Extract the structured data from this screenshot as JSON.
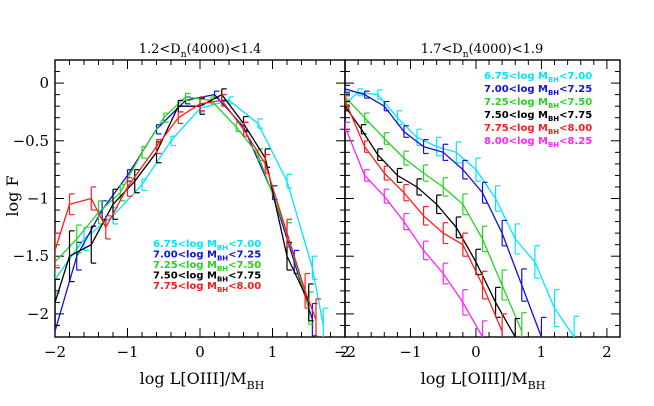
{
  "colors": {
    "cyan": "#00e5ff",
    "blue": "#1010e0",
    "green": "#22d322",
    "black": "#000000",
    "red": "#ff1a1a",
    "magenta": "#ff22ff"
  },
  "axes": {
    "y_label": "log F",
    "x_label": "log L[OIII]/M",
    "x_label_sub": "BH"
  },
  "chart_data": [
    {
      "type": "line",
      "title": "1.2<D",
      "title_sub": "n",
      "title_rest": "(4000)<1.4",
      "xlim": [
        -2,
        2
      ],
      "ylim": [
        -2.2,
        0.2
      ],
      "xticks": [
        -2,
        -1,
        0,
        1,
        2
      ],
      "xtick_labels": [
        "−2",
        "−1",
        "0",
        "1",
        "2"
      ],
      "yticks": [
        0,
        -0.5,
        -1,
        -1.5,
        -2
      ],
      "ytick_labels": [
        "0",
        "−0.5",
        "−1",
        "−1.5",
        "−2"
      ],
      "legend_position": "bottom-center",
      "series": [
        {
          "name": "6.75<log M",
          "name_sub": "BH",
          "name_rest": "<7.00",
          "color": "cyan",
          "x": [
            -2.0,
            -1.6,
            -1.2,
            -0.8,
            -0.4,
            0.0,
            0.4,
            0.8,
            1.2,
            1.55,
            1.7
          ],
          "y": [
            -1.7,
            -1.35,
            -1.15,
            -0.88,
            -0.5,
            -0.22,
            -0.15,
            -0.35,
            -0.85,
            -1.6,
            -2.1
          ],
          "err": [
            0.12,
            0.1,
            0.07,
            0.05,
            0.04,
            0.03,
            0.03,
            0.04,
            0.06,
            0.1,
            0.15
          ]
        },
        {
          "name": "7.00<log M",
          "name_sub": "BH",
          "name_rest": "<7.25",
          "color": "blue",
          "x": [
            -2.0,
            -1.7,
            -1.35,
            -1.0,
            -0.6,
            -0.2,
            0.2,
            0.6,
            1.0,
            1.3,
            1.55
          ],
          "y": [
            -2.15,
            -1.5,
            -1.1,
            -0.8,
            -0.4,
            -0.15,
            -0.1,
            -0.38,
            -0.95,
            -1.55,
            -2.05
          ],
          "err": [
            0.15,
            0.12,
            0.08,
            0.05,
            0.04,
            0.03,
            0.03,
            0.04,
            0.06,
            0.1,
            0.14
          ]
        },
        {
          "name": "7.25<log M",
          "name_sub": "BH",
          "name_rest": "<7.50",
          "color": "green",
          "x": [
            -2.0,
            -1.7,
            -1.4,
            -1.1,
            -0.8,
            -0.5,
            -0.2,
            0.15,
            0.5,
            0.8,
            1.2,
            1.5
          ],
          "y": [
            -1.55,
            -1.35,
            -1.12,
            -0.95,
            -0.6,
            -0.3,
            -0.12,
            -0.15,
            -0.38,
            -0.62,
            -1.3,
            -1.95
          ],
          "err": [
            0.15,
            0.12,
            0.1,
            0.07,
            0.05,
            0.04,
            0.03,
            0.03,
            0.04,
            0.05,
            0.09,
            0.14
          ]
        },
        {
          "name": "7.50<log M",
          "name_sub": "BH",
          "name_rest": "<7.75",
          "color": "black",
          "x": [
            -2.0,
            -1.8,
            -1.5,
            -1.2,
            -0.9,
            -0.6,
            -0.3,
            0.0,
            0.3,
            0.6,
            0.9,
            1.2,
            1.5
          ],
          "y": [
            -1.9,
            -1.5,
            -1.4,
            -1.05,
            -0.85,
            -0.6,
            -0.2,
            -0.2,
            -0.1,
            -0.35,
            -0.65,
            -1.5,
            -1.9
          ],
          "err": [
            0.2,
            0.22,
            0.16,
            0.13,
            0.1,
            0.09,
            0.05,
            0.07,
            0.05,
            0.06,
            0.08,
            0.12,
            0.16
          ]
        },
        {
          "name": "7.75<log M",
          "name_sub": "BH",
          "name_rest": "<8.00",
          "color": "red",
          "x": [
            -2.0,
            -1.8,
            -1.5,
            -1.3,
            -1.0,
            -0.6,
            -0.3,
            0.0,
            0.3,
            0.6,
            0.9,
            1.2,
            1.45,
            1.6
          ],
          "y": [
            -1.45,
            -1.05,
            -1.0,
            -1.25,
            -0.9,
            -0.55,
            -0.3,
            -0.18,
            -0.15,
            -0.4,
            -0.7,
            -1.3,
            -1.8,
            -2.05
          ],
          "err": [
            0.15,
            0.09,
            0.1,
            0.1,
            0.08,
            0.06,
            0.05,
            0.06,
            0.05,
            0.06,
            0.08,
            0.12,
            0.15,
            0.18
          ]
        }
      ]
    },
    {
      "type": "line",
      "title": "1.7<D",
      "title_sub": "n",
      "title_rest": "(4000)<1.9",
      "xlim": [
        -2,
        2.2
      ],
      "ylim": [
        -2.2,
        0.2
      ],
      "xticks": [
        -2,
        -1,
        0,
        1,
        2
      ],
      "xtick_labels": [
        "−2",
        "−1",
        "0",
        "1",
        "2"
      ],
      "yticks": [
        0,
        -0.5,
        -1,
        -1.5,
        -2
      ],
      "ytick_labels": [
        "",
        "",
        "",
        "",
        ""
      ],
      "legend_position": "top-right",
      "series": [
        {
          "name": "6.75<log M",
          "name_sub": "BH",
          "name_rest": "<7.00",
          "color": "cyan",
          "x": [
            -2.0,
            -1.8,
            -1.5,
            -1.2,
            -0.9,
            -0.6,
            -0.3,
            0.0,
            0.3,
            0.6,
            0.9,
            1.2,
            1.5
          ],
          "y": [
            -0.18,
            -0.08,
            -0.1,
            -0.3,
            -0.47,
            -0.55,
            -0.6,
            -0.75,
            -1.0,
            -1.35,
            -1.55,
            -1.95,
            -2.2
          ],
          "err": [
            0.03,
            0.03,
            0.04,
            0.06,
            0.07,
            0.08,
            0.09,
            0.1,
            0.11,
            0.13,
            0.14,
            0.16,
            0.18
          ]
        },
        {
          "name": "7.00<log M",
          "name_sub": "BH",
          "name_rest": "<7.25",
          "color": "blue",
          "x": [
            -2.0,
            -1.7,
            -1.4,
            -1.1,
            -0.8,
            -0.5,
            -0.2,
            0.1,
            0.4,
            0.7,
            1.0
          ],
          "y": [
            -0.05,
            -0.1,
            -0.2,
            -0.42,
            -0.55,
            -0.6,
            -0.75,
            -0.95,
            -1.3,
            -1.75,
            -2.2
          ],
          "err": [
            0.03,
            0.03,
            0.04,
            0.05,
            0.06,
            0.07,
            0.08,
            0.09,
            0.11,
            0.14,
            0.17
          ]
        },
        {
          "name": "7.25<log M",
          "name_sub": "BH",
          "name_rest": "<7.50",
          "color": "green",
          "x": [
            -2.0,
            -1.7,
            -1.4,
            -1.1,
            -0.8,
            -0.5,
            -0.2,
            0.1,
            0.4,
            0.7
          ],
          "y": [
            -0.12,
            -0.3,
            -0.48,
            -0.65,
            -0.78,
            -0.9,
            -1.05,
            -1.35,
            -1.75,
            -2.15
          ],
          "err": [
            0.03,
            0.04,
            0.05,
            0.06,
            0.07,
            0.08,
            0.09,
            0.11,
            0.13,
            0.16
          ]
        },
        {
          "name": "7.50<log M",
          "name_sub": "BH",
          "name_rest": "<7.75",
          "color": "black",
          "x": [
            -2.0,
            -1.75,
            -1.5,
            -1.2,
            -0.9,
            -0.6,
            -0.3,
            0.0,
            0.3,
            0.6
          ],
          "y": [
            -0.2,
            -0.4,
            -0.62,
            -0.8,
            -0.9,
            -1.05,
            -1.25,
            -1.55,
            -1.9,
            -2.2
          ],
          "err": [
            0.04,
            0.04,
            0.05,
            0.06,
            0.07,
            0.08,
            0.09,
            0.11,
            0.13,
            0.16
          ]
        },
        {
          "name": "7.75<log M",
          "name_sub": "BH",
          "name_rest": "<8.00",
          "color": "red",
          "x": [
            -2.0,
            -1.7,
            -1.4,
            -1.1,
            -0.8,
            -0.5,
            -0.2,
            0.1,
            0.4
          ],
          "y": [
            -0.15,
            -0.55,
            -0.78,
            -0.95,
            -1.15,
            -1.3,
            -1.4,
            -1.75,
            -2.15
          ],
          "err": [
            0.04,
            0.05,
            0.06,
            0.07,
            0.08,
            0.09,
            0.1,
            0.12,
            0.15
          ]
        },
        {
          "name": "8.00<log M",
          "name_sub": "BH",
          "name_rest": "<8.25",
          "color": "magenta",
          "x": [
            -2.0,
            -1.7,
            -1.4,
            -1.1,
            -0.8,
            -0.5,
            -0.2,
            0.1
          ],
          "y": [
            -0.38,
            -0.8,
            -0.98,
            -1.2,
            -1.45,
            -1.65,
            -1.9,
            -2.2
          ],
          "err": [
            0.04,
            0.05,
            0.06,
            0.07,
            0.08,
            0.09,
            0.11,
            0.14
          ]
        }
      ]
    }
  ]
}
